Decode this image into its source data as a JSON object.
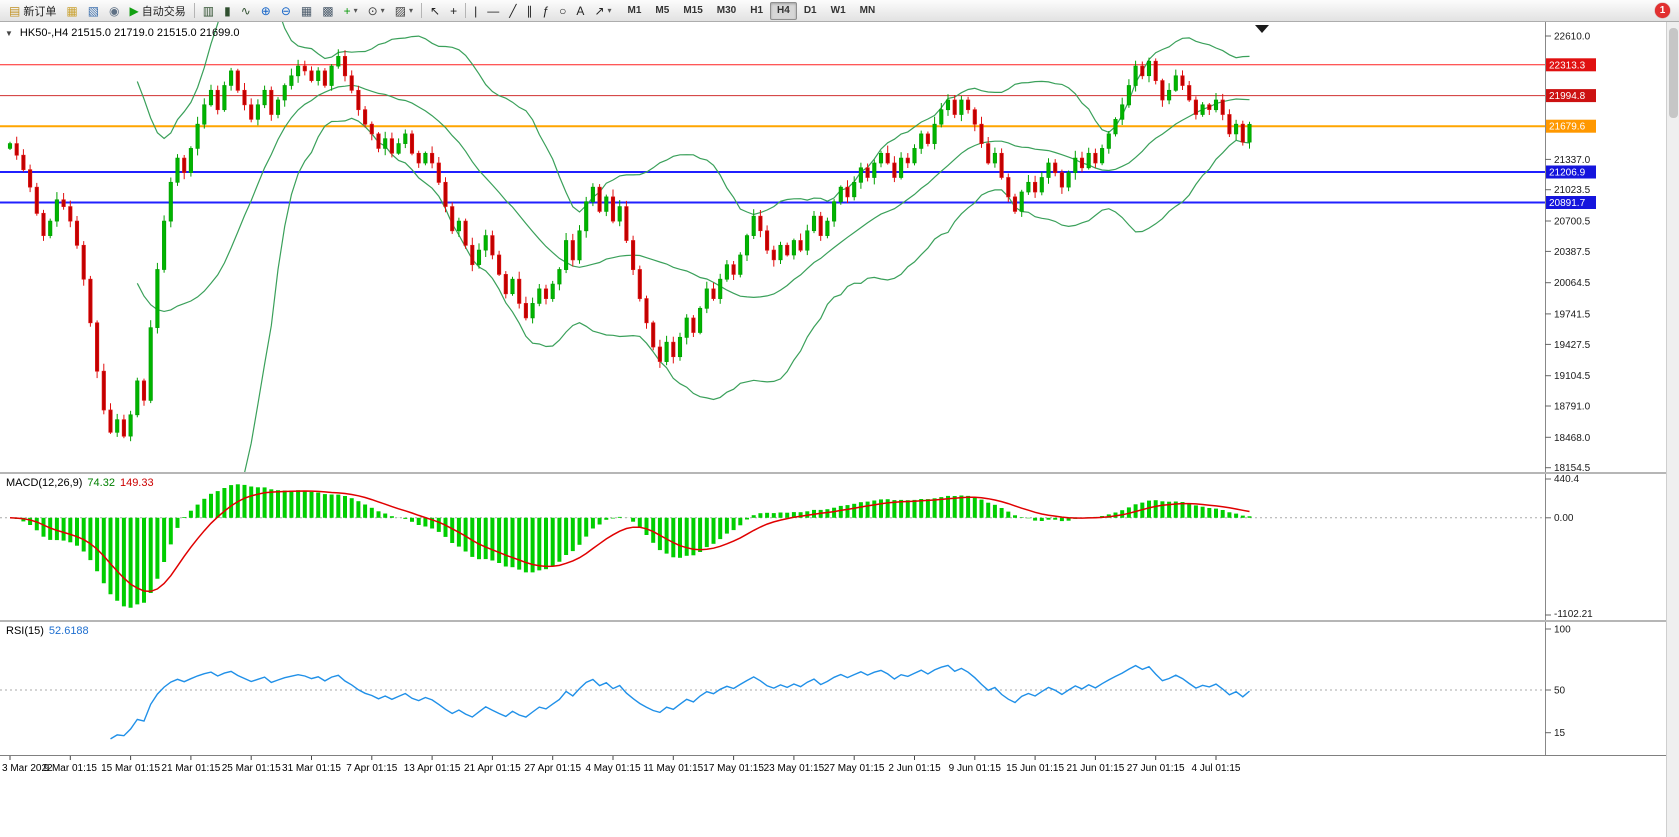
{
  "window": {
    "badge_count": "1"
  },
  "icons": {
    "oct_arrow": "▼",
    "caret": "▾"
  },
  "toolbar": {
    "items": [
      {
        "name": "new-order-button",
        "glyph": "▤",
        "gcolor": "#c09020",
        "label": "新订单"
      },
      {
        "name": "chart-window-icon",
        "glyph": "▦",
        "gcolor": "#caa231"
      },
      {
        "name": "profiles-icon",
        "glyph": "▧",
        "gcolor": "#3f72af"
      },
      {
        "name": "market-watch-icon",
        "glyph": "◉",
        "gcolor": "#5f7185"
      },
      {
        "name": "autotrading-button",
        "glyph": "▶",
        "gcolor": "#12a012",
        "label": "自动交易"
      },
      {
        "sep": true
      },
      {
        "name": "bar-chart-mode-icon",
        "glyph": "▥",
        "gcolor": "#2f4f2f"
      },
      {
        "name": "candlestick-mode-icon",
        "glyph": "▮",
        "gcolor": "#2f4f2f"
      },
      {
        "name": "line-chart-mode-icon",
        "glyph": "∿",
        "gcolor": "#2f4f2f"
      },
      {
        "name": "zoom-in-icon",
        "glyph": "⊕",
        "gcolor": "#1464c8"
      },
      {
        "name": "zoom-out-icon",
        "glyph": "⊖",
        "gcolor": "#1464c8"
      },
      {
        "name": "tile-windows-icon",
        "glyph": "▦",
        "gcolor": "#4a5a6a"
      },
      {
        "name": "cascade-windows-icon",
        "glyph": "▩",
        "gcolor": "#4a5a6a"
      },
      {
        "name": "indicators-icon",
        "glyph": "+",
        "gcolor": "#0a9a0a",
        "caret": true
      },
      {
        "name": "periods-icon",
        "glyph": "⊙",
        "gcolor": "#444",
        "caret": true
      },
      {
        "name": "templates-icon",
        "glyph": "▨",
        "gcolor": "#444",
        "caret": true
      },
      {
        "sep": true
      },
      {
        "name": "cursor-icon",
        "glyph": "↖",
        "gcolor": "#222"
      },
      {
        "name": "crosshair-icon",
        "glyph": "+",
        "gcolor": "#222"
      },
      {
        "sep": true
      },
      {
        "name": "vline-tool-icon",
        "glyph": "|",
        "gcolor": "#222"
      },
      {
        "name": "hline-tool-icon",
        "glyph": "—",
        "gcolor": "#222"
      },
      {
        "name": "trendline-tool-icon",
        "glyph": "╱",
        "gcolor": "#222"
      },
      {
        "name": "channel-tool-icon",
        "glyph": "∥",
        "gcolor": "#222"
      },
      {
        "name": "fibonacci-tool-icon",
        "glyph": "ƒ",
        "gcolor": "#222"
      },
      {
        "name": "shapes-tool-icon",
        "glyph": "○",
        "gcolor": "#222"
      },
      {
        "name": "text-tool-icon",
        "glyph": "A",
        "gcolor": "#222"
      },
      {
        "name": "arrows-tool-icon",
        "glyph": "↗",
        "gcolor": "#222",
        "caret": true
      }
    ],
    "timeframes": [
      "M1",
      "M5",
      "M15",
      "M30",
      "H1",
      "H4",
      "D1",
      "W1",
      "MN"
    ],
    "active_timeframe": "H4"
  },
  "chart_data": [
    {
      "type": "candlestick",
      "title": "HK50-,H4",
      "header": "HK50-,H4 21515.0 21719.0 21515.0 21699.0",
      "ohlc_current": {
        "open": 21515.0,
        "high": 21719.0,
        "low": 21515.0,
        "close": 21699.0
      },
      "indicator": "Bollinger Bands (20,2)",
      "open0": 21450,
      "ylim": [
        18110,
        22755
      ],
      "y_ticks": [
        "22610.0",
        "21337.0",
        "21023.5",
        "20700.5",
        "20387.5",
        "20064.5",
        "19741.5",
        "19427.5",
        "19104.5",
        "18791.0",
        "18468.0",
        "18154.5"
      ],
      "levels": [
        {
          "price": 22313.3,
          "label": "22313.3",
          "line": "#ff2020",
          "chip": "#e01010",
          "width": 1
        },
        {
          "price": 21994.8,
          "label": "21994.8",
          "line": "#d03030",
          "chip": "#cc1111",
          "width": 1
        },
        {
          "price": 21679.6,
          "label": "21679.6",
          "line": "#ffa500",
          "chip": "#ff9800",
          "width": 2
        },
        {
          "price": 21206.9,
          "label": "21206.9",
          "line": "#2020ff",
          "chip": "#1515dd",
          "width": 2
        },
        {
          "price": 20891.7,
          "label": "20891.7",
          "line": "#2020ff",
          "chip": "#1515dd",
          "width": 2
        }
      ],
      "x_labels": [
        "3 Mar 2022",
        "9 Mar 01:15",
        "15 Mar 01:15",
        "21 Mar 01:15",
        "25 Mar 01:15",
        "31 Mar 01:15",
        "7 Apr 01:15",
        "13 Apr 01:15",
        "21 Apr 01:15",
        "27 Apr 01:15",
        "4 May 01:15",
        "11 May 01:15",
        "17 May 01:15",
        "23 May 01:15",
        "27 May 01:15",
        "2 Jun 01:15",
        "9 Jun 01:15",
        "15 Jun 01:15",
        "21 Jun 01:15",
        "27 Jun 01:15",
        "4 Jul 01:15"
      ],
      "closes": [
        21500,
        21380,
        21230,
        21050,
        20780,
        20550,
        20700,
        20920,
        20850,
        20700,
        20450,
        20100,
        19650,
        19150,
        18750,
        18520,
        18650,
        18480,
        18700,
        19050,
        18850,
        19600,
        20200,
        20700,
        21100,
        21350,
        21200,
        21450,
        21700,
        21900,
        22050,
        21850,
        22100,
        22250,
        22050,
        21900,
        21750,
        21900,
        22050,
        21800,
        21950,
        22100,
        22200,
        22300,
        22250,
        22150,
        22250,
        22100,
        22300,
        22400,
        22200,
        22050,
        21850,
        21700,
        21600,
        21450,
        21550,
        21400,
        21500,
        21600,
        21400,
        21300,
        21400,
        21300,
        21100,
        20850,
        20600,
        20700,
        20450,
        20250,
        20400,
        20550,
        20350,
        20150,
        19950,
        20100,
        19850,
        19700,
        19850,
        20000,
        19900,
        20050,
        20200,
        20500,
        20300,
        20600,
        20900,
        21050,
        20800,
        20950,
        20700,
        20850,
        20500,
        20200,
        19900,
        19650,
        19400,
        19250,
        19450,
        19300,
        19500,
        19700,
        19550,
        19800,
        20000,
        19900,
        20100,
        20250,
        20150,
        20350,
        20550,
        20750,
        20600,
        20400,
        20300,
        20450,
        20350,
        20500,
        20400,
        20600,
        20750,
        20550,
        20700,
        20900,
        21050,
        20950,
        21100,
        21250,
        21150,
        21300,
        21400,
        21300,
        21150,
        21350,
        21300,
        21450,
        21600,
        21500,
        21700,
        21850,
        21950,
        21800,
        21950,
        21850,
        21700,
        21500,
        21300,
        21400,
        21150,
        20950,
        20800,
        21000,
        21100,
        21000,
        21150,
        21300,
        21200,
        21050,
        21200,
        21350,
        21250,
        21400,
        21300,
        21450,
        21600,
        21750,
        21900,
        22100,
        22300,
        22200,
        22350,
        22150,
        21950,
        22050,
        22200,
        22100,
        21950,
        21800,
        21900,
        21850,
        21950,
        21800,
        21600,
        21700,
        21515,
        21699
      ]
    },
    {
      "type": "macd-histogram",
      "label": "MACD(12,26,9)",
      "value_main": "74.32",
      "value_signal": "149.33",
      "derived_from": "closes",
      "ylim": [
        -1102.21,
        440.4
      ],
      "y_ticks": [
        "440.4",
        "0.00",
        "-1102.21"
      ]
    },
    {
      "type": "line",
      "label": "RSI(15)",
      "value": "52.6188",
      "derived_from": "closes",
      "ylim": [
        0,
        100
      ],
      "levels": [
        50
      ],
      "y_ticks": [
        "100",
        "50",
        "15"
      ]
    }
  ]
}
